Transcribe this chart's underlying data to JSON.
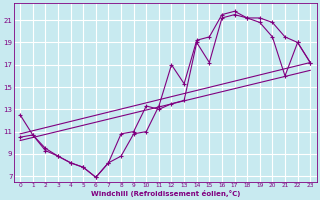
{
  "xlabel": "Windchill (Refroidissement éolien,°C)",
  "bg_color": "#c8eaf0",
  "grid_color": "#b0d8e0",
  "line_color": "#800080",
  "xlim": [
    -0.5,
    23.5
  ],
  "ylim": [
    6.5,
    22.5
  ],
  "yticks": [
    7,
    9,
    11,
    13,
    15,
    17,
    19,
    21
  ],
  "xticks": [
    0,
    1,
    2,
    3,
    4,
    5,
    6,
    7,
    8,
    9,
    10,
    11,
    12,
    13,
    14,
    15,
    16,
    17,
    18,
    19,
    20,
    21,
    22,
    23
  ],
  "curve1_x": [
    0,
    1,
    2,
    3,
    4,
    5,
    6,
    7,
    8,
    9,
    10,
    11,
    12,
    13,
    14,
    15,
    16,
    17,
    18,
    19,
    20,
    21,
    22,
    23
  ],
  "curve1_y": [
    12.5,
    10.7,
    9.5,
    8.8,
    8.2,
    7.8,
    6.9,
    8.2,
    8.8,
    10.8,
    11.0,
    13.3,
    17.0,
    15.3,
    19.2,
    19.5,
    21.5,
    21.8,
    21.2,
    21.2,
    20.8,
    19.5,
    19.0,
    17.2
  ],
  "curve2_x": [
    0,
    1,
    2,
    3,
    4,
    5,
    6,
    7,
    8,
    9,
    10,
    11,
    12,
    13,
    14,
    15,
    16,
    17,
    18,
    19,
    20,
    21,
    22,
    23
  ],
  "curve2_y": [
    10.5,
    10.7,
    9.3,
    8.8,
    8.2,
    7.8,
    6.9,
    8.2,
    10.8,
    11.0,
    13.3,
    13.0,
    13.5,
    13.8,
    19.0,
    17.2,
    21.2,
    21.5,
    21.2,
    20.8,
    19.5,
    16.0,
    19.0,
    17.2
  ],
  "line1_x": [
    0,
    23
  ],
  "line1_y": [
    10.8,
    17.2
  ],
  "line2_x": [
    0,
    23
  ],
  "line2_y": [
    10.2,
    16.5
  ]
}
